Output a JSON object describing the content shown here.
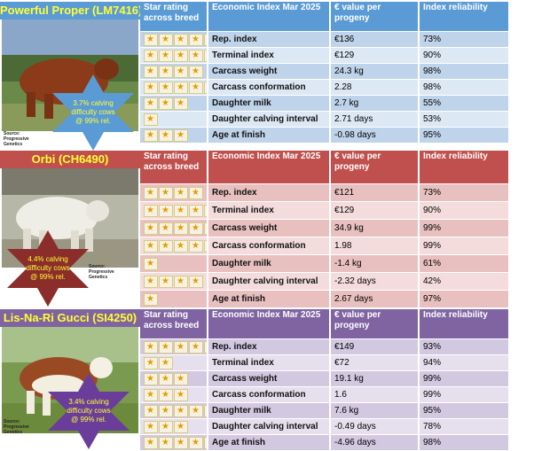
{
  "headers": {
    "star": "Star rating across breed",
    "index": "Economic Index Mar 2025",
    "value": "€ value per progeny",
    "reliability": "Index reliability"
  },
  "sections": [
    {
      "title": "Powerful Proper (LM7416)",
      "accent": "#5b9bd5",
      "row_light": "#dde8f5",
      "row_dark": "#bfd3ea",
      "badge_color": "#5b9bd5",
      "badge_text": "3.7% calving difficulty cows @ 99% rel.",
      "source": "Source: Progressive Genetics",
      "rows": [
        {
          "stars": 5,
          "name": "Rep. index",
          "value": "€136",
          "rel": "73%"
        },
        {
          "stars": 5,
          "name": "Terminal index",
          "value": "€129",
          "rel": "90%"
        },
        {
          "stars": 4,
          "name": "Carcass weight",
          "value": "24.3 kg",
          "rel": "98%"
        },
        {
          "stars": 5,
          "name": "Carcass conformation",
          "value": "2.28",
          "rel": "98%"
        },
        {
          "stars": 3,
          "name": "Daughter milk",
          "value": "2.7 kg",
          "rel": "55%"
        },
        {
          "stars": 1,
          "name": "Daughter calving interval",
          "value": "2.71 days",
          "rel": "53%"
        },
        {
          "stars": 3,
          "name": "Age at finish",
          "value": "-0.98 days",
          "rel": "95%"
        }
      ]
    },
    {
      "title": "Orbi (CH6490)",
      "accent": "#c0504d",
      "row_light": "#f3dcdb",
      "row_dark": "#e8c0bf",
      "badge_color": "#8b2d2a",
      "badge_text": "4.4% calving difficulty cows @ 99% rel.",
      "source": "Source: Progressive Genetics",
      "rows": [
        {
          "stars": 4,
          "name": "Rep. index",
          "value": "€121",
          "rel": "73%"
        },
        {
          "stars": 5,
          "name": "Terminal index",
          "value": "€129",
          "rel": "90%"
        },
        {
          "stars": 5,
          "name": "Carcass weight",
          "value": "34.9 kg",
          "rel": "99%"
        },
        {
          "stars": 5,
          "name": "Carcass conformation",
          "value": "1.98",
          "rel": "99%"
        },
        {
          "stars": 1,
          "name": "Daughter milk",
          "value": "-1.4 kg",
          "rel": "61%"
        },
        {
          "stars": 4,
          "name": "Daughter calving interval",
          "value": "-2.32 days",
          "rel": "42%"
        },
        {
          "stars": 1,
          "name": "Age at finish",
          "value": "2.67 days",
          "rel": "97%"
        }
      ]
    },
    {
      "title": "Lis-Na-Ri Gucci (SI4250)",
      "accent": "#8064a2",
      "row_light": "#e6e0ee",
      "row_dark": "#d2c8e0",
      "badge_color": "#6a3d9a",
      "badge_text": "3.4% calving difficulty cows @ 99% rel.",
      "source": "Source: Progressive Genetics",
      "rows": [
        {
          "stars": 5,
          "name": "Rep. index",
          "value": "€149",
          "rel": "93%"
        },
        {
          "stars": 2,
          "name": "Terminal index",
          "value": "€72",
          "rel": "94%"
        },
        {
          "stars": 3,
          "name": "Carcass weight",
          "value": "19.1 kg",
          "rel": "99%"
        },
        {
          "stars": 3,
          "name": "Carcass conformation",
          "value": "1.6",
          "rel": "99%"
        },
        {
          "stars": 5,
          "name": "Daughter milk",
          "value": "7.6 kg",
          "rel": "95%"
        },
        {
          "stars": 3,
          "name": "Daughter calving interval",
          "value": "-0.49 days",
          "rel": "78%"
        },
        {
          "stars": 5,
          "name": "Age at finish",
          "value": "-4.96 days",
          "rel": "98%"
        }
      ]
    }
  ]
}
